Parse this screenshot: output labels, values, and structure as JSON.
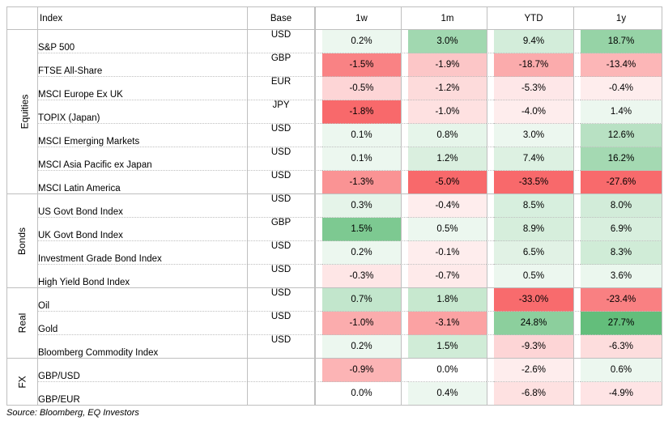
{
  "headers": {
    "index": "Index",
    "base": "Base",
    "w1": "1w",
    "m1": "1m",
    "ytd": "YTD",
    "y1": "1y"
  },
  "groups": [
    {
      "label": "Equities",
      "rows": [
        {
          "name": "S&P 500",
          "base": "USD",
          "w1": "0.2%",
          "m1": "3.0%",
          "ytd": "9.4%",
          "y1": "18.7%"
        },
        {
          "name": "FTSE All-Share",
          "base": "GBP",
          "w1": "-1.5%",
          "m1": "-1.9%",
          "ytd": "-18.7%",
          "y1": "-13.4%"
        },
        {
          "name": "MSCI Europe Ex UK",
          "base": "EUR",
          "w1": "-0.5%",
          "m1": "-1.2%",
          "ytd": "-5.3%",
          "y1": "-0.4%"
        },
        {
          "name": "TOPIX (Japan)",
          "base": "JPY",
          "w1": "-1.8%",
          "m1": "-1.0%",
          "ytd": "-4.0%",
          "y1": "1.4%"
        },
        {
          "name": "MSCI Emerging Markets",
          "base": "USD",
          "w1": "0.1%",
          "m1": "0.8%",
          "ytd": "3.0%",
          "y1": "12.6%"
        },
        {
          "name": "MSCI Asia Pacific ex Japan",
          "base": "USD",
          "w1": "0.1%",
          "m1": "1.2%",
          "ytd": "7.4%",
          "y1": "16.2%"
        },
        {
          "name": "MSCI Latin America",
          "base": "USD",
          "w1": "-1.3%",
          "m1": "-5.0%",
          "ytd": "-33.5%",
          "y1": "-27.6%"
        }
      ]
    },
    {
      "label": "Bonds",
      "rows": [
        {
          "name": "US Govt Bond Index",
          "base": "USD",
          "w1": "0.3%",
          "m1": "-0.4%",
          "ytd": "8.5%",
          "y1": "8.0%"
        },
        {
          "name": "UK Govt Bond Index",
          "base": "GBP",
          "w1": "1.5%",
          "m1": "0.5%",
          "ytd": "8.9%",
          "y1": "6.9%"
        },
        {
          "name": "Investment Grade Bond Index",
          "base": "USD",
          "w1": "0.2%",
          "m1": "-0.1%",
          "ytd": "6.5%",
          "y1": "8.3%"
        },
        {
          "name": "High Yield Bond Index",
          "base": "USD",
          "w1": "-0.3%",
          "m1": "-0.7%",
          "ytd": "0.5%",
          "y1": "3.6%"
        }
      ]
    },
    {
      "label": "Real",
      "rows": [
        {
          "name": "Oil",
          "base": "USD",
          "w1": "0.7%",
          "m1": "1.8%",
          "ytd": "-33.0%",
          "y1": "-23.4%"
        },
        {
          "name": "Gold",
          "base": "USD",
          "w1": "-1.0%",
          "m1": "-3.1%",
          "ytd": "24.8%",
          "y1": "27.7%"
        },
        {
          "name": "Bloomberg Commodity Index",
          "base": "USD",
          "w1": "0.2%",
          "m1": "1.5%",
          "ytd": "-9.3%",
          "y1": "-6.3%"
        }
      ]
    },
    {
      "label": "FX",
      "rows": [
        {
          "name": "GBP/USD",
          "base": "",
          "w1": "-0.9%",
          "m1": "0.0%",
          "ytd": "-2.6%",
          "y1": "0.6%"
        },
        {
          "name": "GBP/EUR",
          "base": "",
          "w1": "0.0%",
          "m1": "0.4%",
          "ytd": "-6.8%",
          "y1": "-4.9%"
        }
      ]
    }
  ],
  "source": "Source: Bloomberg, EQ Investors",
  "colors": {
    "positive_strong": "#63be7b",
    "negative_strong": "#f8696b",
    "neutral": "#ffffff"
  }
}
